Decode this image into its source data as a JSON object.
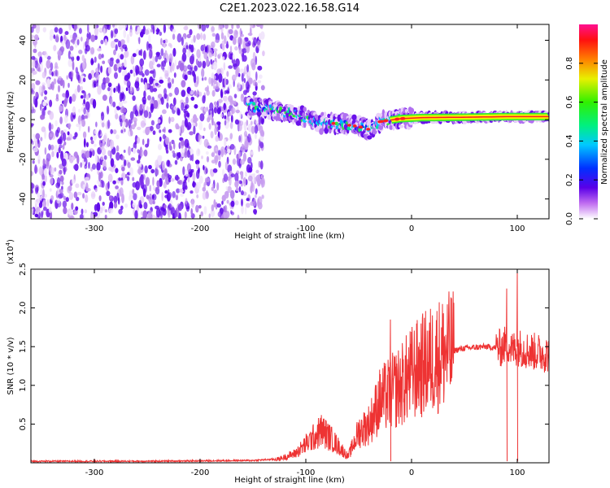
{
  "title": "C2E1.2023.022.16.58.G14",
  "chart_data": [
    {
      "type": "heatmap",
      "xlabel": "Height of straight line (km)",
      "ylabel": "Frequency (Hz)",
      "xlim": [
        -360,
        130
      ],
      "ylim": [
        -50,
        48
      ],
      "x_ticks": [
        -300,
        -200,
        -100,
        0,
        100
      ],
      "x_tick_labels": [
        "-300",
        "-200",
        "-100",
        "0",
        "100"
      ],
      "y_ticks": [
        -40,
        -20,
        0,
        20,
        40
      ],
      "y_tick_labels": [
        "-40",
        "-20",
        "0",
        "20",
        "40"
      ],
      "noise_region_x": [
        -360,
        -140
      ],
      "track": [
        {
          "x": -155,
          "y": 6.5
        },
        {
          "x": -130,
          "y": 5
        },
        {
          "x": -110,
          "y": 3
        },
        {
          "x": -90,
          "y": -1.5
        },
        {
          "x": -70,
          "y": -2
        },
        {
          "x": -50,
          "y": -3.5
        },
        {
          "x": -40,
          "y": -5
        },
        {
          "x": -30,
          "y": -1
        },
        {
          "x": -10,
          "y": 0.5
        },
        {
          "x": 10,
          "y": 1
        },
        {
          "x": 50,
          "y": 1.2
        },
        {
          "x": 90,
          "y": 1.5
        },
        {
          "x": 130,
          "y": 1.5
        }
      ],
      "colorbar": {
        "label": "Normalized spectral amplitude",
        "range": [
          0,
          1
        ],
        "ticks": [
          0,
          0.2,
          0.4,
          0.6,
          0.8
        ],
        "tick_labels": [
          "0.0",
          "0.2",
          "0.4",
          "0.6",
          "0.8"
        ]
      },
      "grid": false
    },
    {
      "type": "line",
      "xlabel": "Height of straight line (km)",
      "ylabel": "SNR (10 * v/v)",
      "y_multiplier": "(x10",
      "y_multiplier_exp": "4",
      "y_multiplier_close": ")",
      "xlim": [
        -360,
        130
      ],
      "ylim": [
        0,
        2.5
      ],
      "x_ticks": [
        -300,
        -200,
        -100,
        0,
        100
      ],
      "x_tick_labels": [
        "-300",
        "-200",
        "-100",
        "0",
        "100"
      ],
      "y_ticks": [
        0.5,
        1.0,
        1.5,
        2.0,
        2.5
      ],
      "y_tick_labels": [
        "0.5",
        "1.0",
        "1.5",
        "2.0",
        "2.5"
      ],
      "series": [
        {
          "color": "#ee3333",
          "x": [
            -360,
            -250,
            -150,
            -125,
            -110,
            -95,
            -85,
            -75,
            -60,
            -50,
            -40,
            -30,
            -20,
            -10,
            0,
            15,
            30,
            50,
            70,
            85,
            90,
            95,
            100,
            110,
            130
          ],
          "y": [
            0.02,
            0.02,
            0.03,
            0.05,
            0.12,
            0.3,
            0.42,
            0.3,
            0.08,
            0.4,
            0.5,
            0.8,
            0.9,
            1.0,
            1.15,
            1.3,
            1.42,
            1.48,
            1.5,
            1.48,
            1.55,
            1.45,
            1.5,
            1.45,
            1.4
          ]
        }
      ],
      "spikes": [
        {
          "x": -20,
          "y": 1.85
        },
        {
          "x": 90,
          "y": 2.25
        },
        {
          "x": 100,
          "y": 2.5
        }
      ],
      "grid": false
    }
  ]
}
